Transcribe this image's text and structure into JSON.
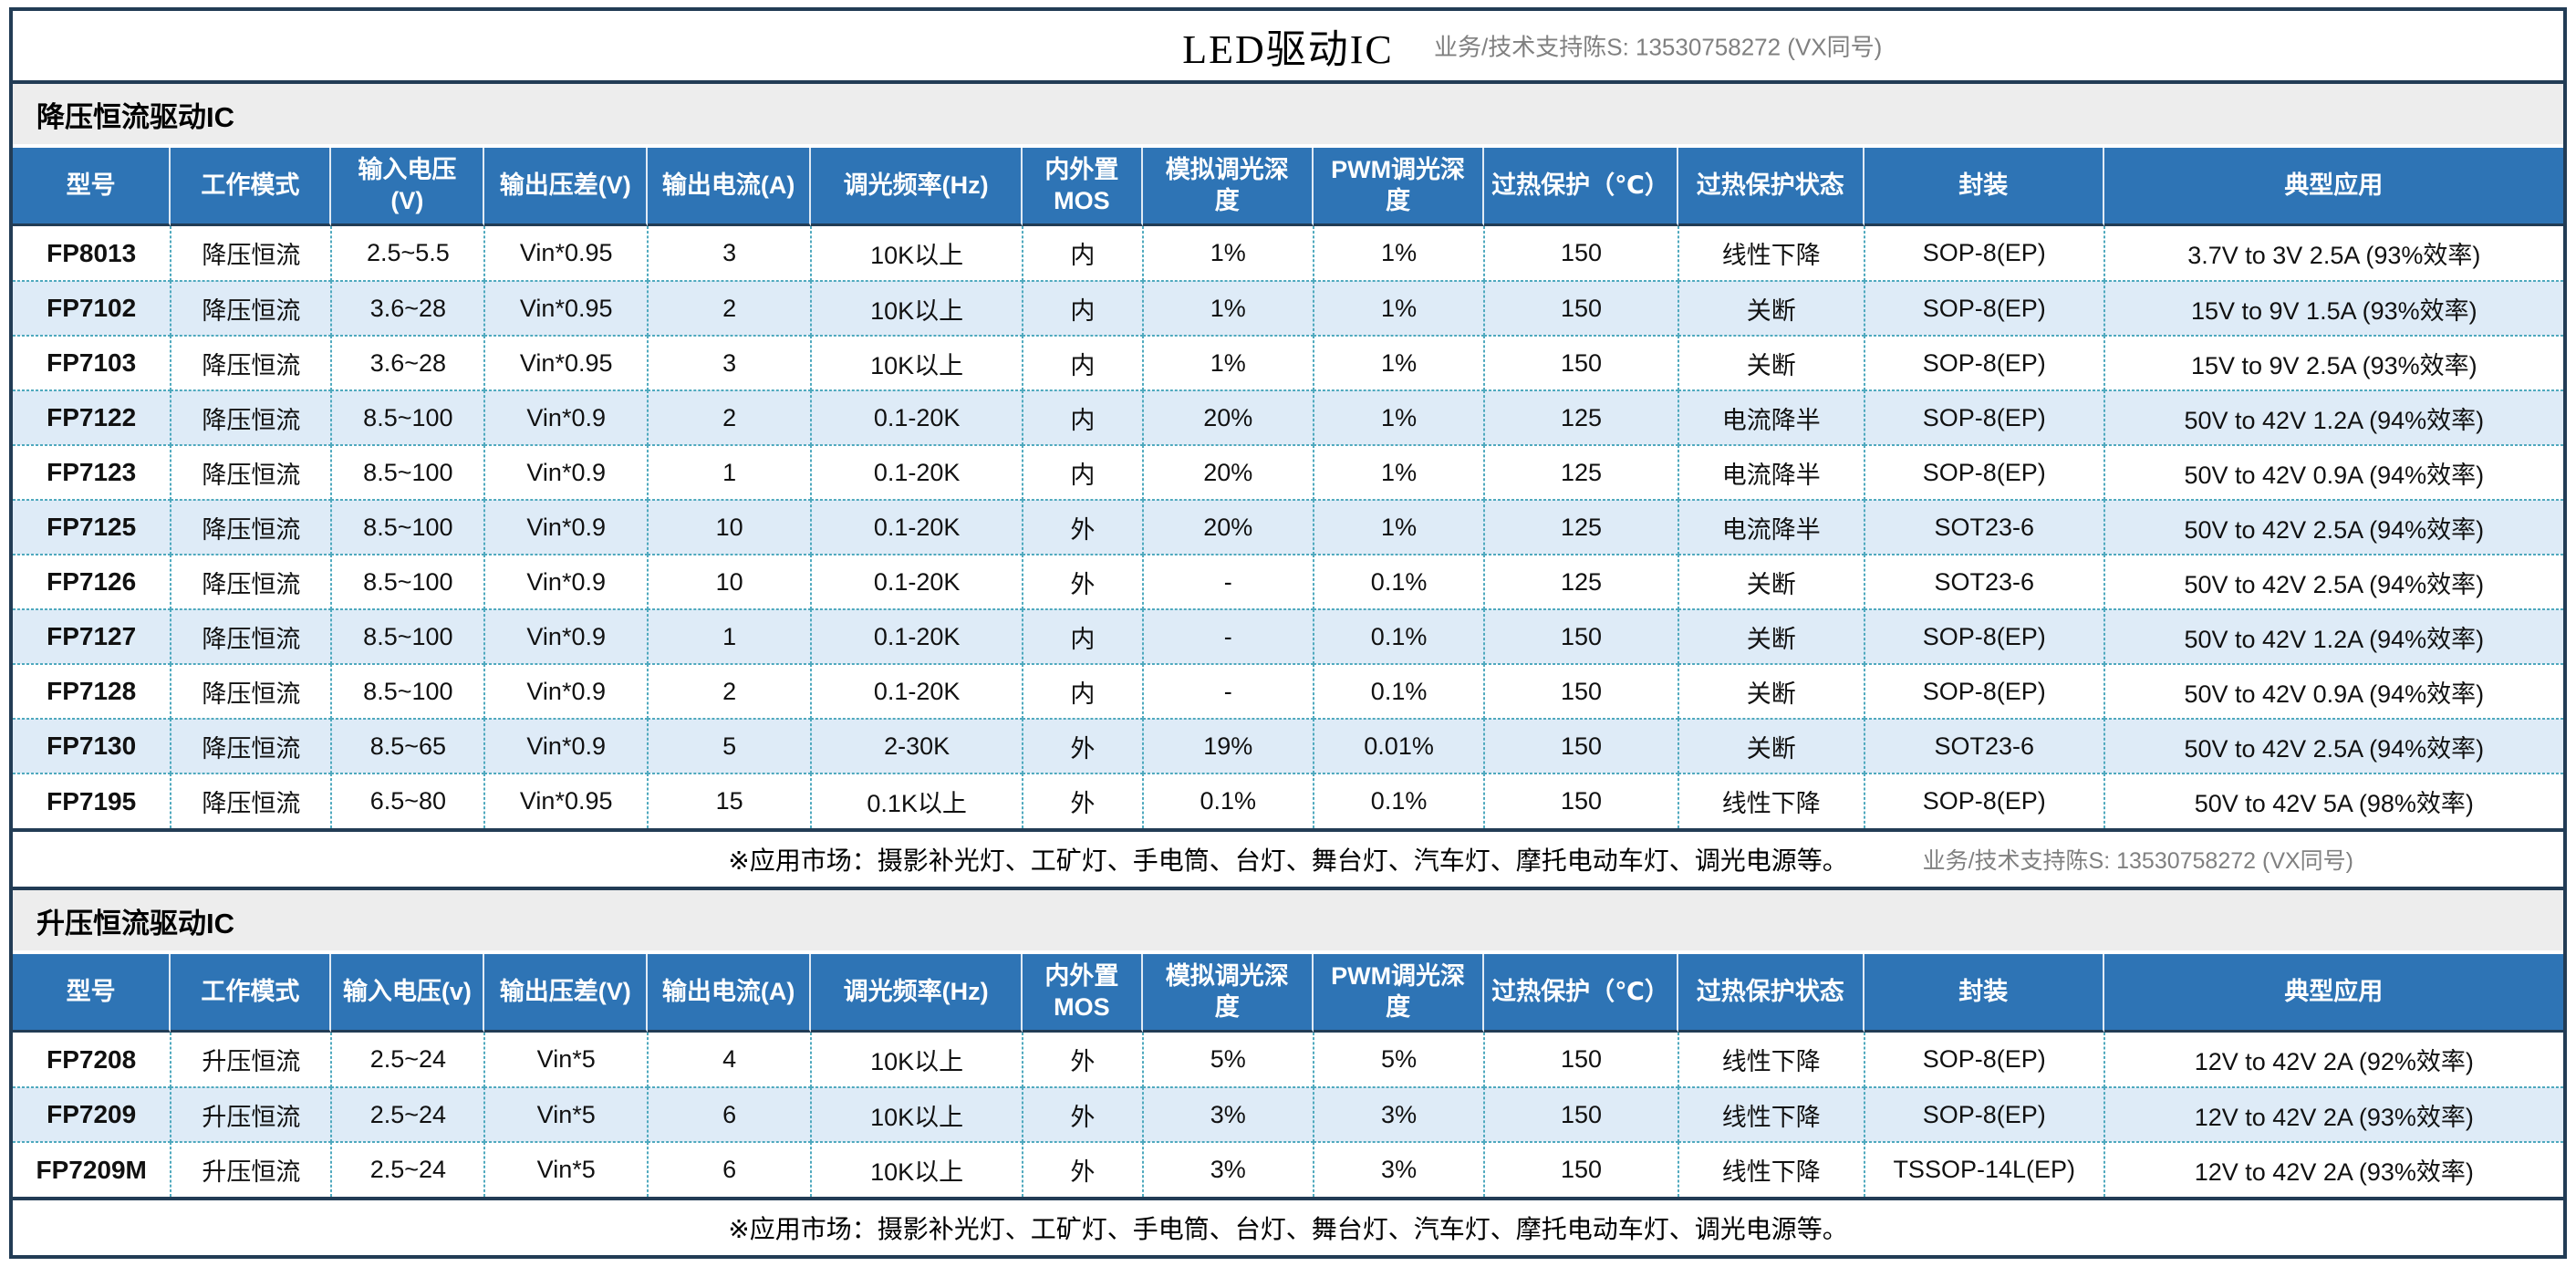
{
  "header": {
    "title": "LED驱动IC",
    "contact": "业务/技术支持陈S: 13530758272 (VX同号)"
  },
  "colors": {
    "header_blue": "#2E74B5",
    "alt_row_blue": "#DEEBF7",
    "grid_dash_teal": "#4FA9BE",
    "frame_dark_navy": "#223C55",
    "section_band_gray": "#EDEDED",
    "contact_gray": "#808080"
  },
  "sections": [
    {
      "title": "降压恒流驱动IC",
      "columns": [
        "型号",
        "工作模式",
        "输入电压\n(V)",
        "输出压差(V)",
        "输出电流(A)",
        "调光频率(Hz)",
        "内外置\nMOS",
        "模拟调光深\n度",
        "PWM调光深\n度",
        "过热保护（℃）",
        "过热保护状态",
        "封装",
        "典型应用"
      ],
      "rows": [
        [
          "FP8013",
          "降压恒流",
          "2.5~5.5",
          "Vin*0.95",
          "3",
          "10K以上",
          "内",
          "1%",
          "1%",
          "150",
          "线性下降",
          "SOP-8(EP)",
          "3.7V to 3V 2.5A (93%效率)"
        ],
        [
          "FP7102",
          "降压恒流",
          "3.6~28",
          "Vin*0.95",
          "2",
          "10K以上",
          "内",
          "1%",
          "1%",
          "150",
          "关断",
          "SOP-8(EP)",
          "15V to 9V 1.5A (93%效率)"
        ],
        [
          "FP7103",
          "降压恒流",
          "3.6~28",
          "Vin*0.95",
          "3",
          "10K以上",
          "内",
          "1%",
          "1%",
          "150",
          "关断",
          "SOP-8(EP)",
          "15V to 9V 2.5A (93%效率)"
        ],
        [
          "FP7122",
          "降压恒流",
          "8.5~100",
          "Vin*0.9",
          "2",
          "0.1-20K",
          "内",
          "20%",
          "1%",
          "125",
          "电流降半",
          "SOP-8(EP)",
          "50V to 42V 1.2A (94%效率)"
        ],
        [
          "FP7123",
          "降压恒流",
          "8.5~100",
          "Vin*0.9",
          "1",
          "0.1-20K",
          "内",
          "20%",
          "1%",
          "125",
          "电流降半",
          "SOP-8(EP)",
          "50V to 42V 0.9A (94%效率)"
        ],
        [
          "FP7125",
          "降压恒流",
          "8.5~100",
          "Vin*0.9",
          "10",
          "0.1-20K",
          "外",
          "20%",
          "1%",
          "125",
          "电流降半",
          "SOT23-6",
          "50V to 42V 2.5A (94%效率)"
        ],
        [
          "FP7126",
          "降压恒流",
          "8.5~100",
          "Vin*0.9",
          "10",
          "0.1-20K",
          "外",
          "-",
          "0.1%",
          "125",
          "关断",
          "SOT23-6",
          "50V to 42V 2.5A (94%效率)"
        ],
        [
          "FP7127",
          "降压恒流",
          "8.5~100",
          "Vin*0.9",
          "1",
          "0.1-20K",
          "内",
          "-",
          "0.1%",
          "150",
          "关断",
          "SOP-8(EP)",
          "50V to 42V 1.2A (94%效率)"
        ],
        [
          "FP7128",
          "降压恒流",
          "8.5~100",
          "Vin*0.9",
          "2",
          "0.1-20K",
          "内",
          "-",
          "0.1%",
          "150",
          "关断",
          "SOP-8(EP)",
          "50V to 42V 0.9A (94%效率)"
        ],
        [
          "FP7130",
          "降压恒流",
          "8.5~65",
          "Vin*0.9",
          "5",
          "2-30K",
          "外",
          "19%",
          "0.01%",
          "150",
          "关断",
          "SOT23-6",
          "50V to 42V 2.5A (94%效率)"
        ],
        [
          "FP7195",
          "降压恒流",
          "6.5~80",
          "Vin*0.95",
          "15",
          "0.1K以上",
          "外",
          "0.1%",
          "0.1%",
          "150",
          "线性下降",
          "SOP-8(EP)",
          "50V to 42V 5A (98%效率)"
        ]
      ],
      "note": "※应用市场：摄影补光灯、工矿灯、手电筒、台灯、舞台灯、汽车灯、摩托电动车灯、调光电源等。",
      "note_contact": "业务/技术支持陈S: 13530758272 (VX同号)"
    },
    {
      "title": "升压恒流驱动IC",
      "columns": [
        "型号",
        "工作模式",
        "输入电压(v)",
        "输出压差(V)",
        "输出电流(A)",
        "调光频率(Hz)",
        "内外置\nMOS",
        "模拟调光深\n度",
        "PWM调光深\n度",
        "过热保护（℃）",
        "过热保护状态",
        "封装",
        "典型应用"
      ],
      "rows": [
        [
          "FP7208",
          "升压恒流",
          "2.5~24",
          "Vin*5",
          "4",
          "10K以上",
          "外",
          "5%",
          "5%",
          "150",
          "线性下降",
          "SOP-8(EP)",
          "12V to 42V 2A (92%效率)"
        ],
        [
          "FP7209",
          "升压恒流",
          "2.5~24",
          "Vin*5",
          "6",
          "10K以上",
          "外",
          "3%",
          "3%",
          "150",
          "线性下降",
          "SOP-8(EP)",
          "12V to 42V 2A (93%效率)"
        ],
        [
          "FP7209M",
          "升压恒流",
          "2.5~24",
          "Vin*5",
          "6",
          "10K以上",
          "外",
          "3%",
          "3%",
          "150",
          "线性下降",
          "TSSOP-14L(EP)",
          "12V to 42V 2A (93%效率)"
        ]
      ],
      "note": "※应用市场：摄影补光灯、工矿灯、手电筒、台灯、舞台灯、汽车灯、摩托电动车灯、调光电源等。",
      "note_contact": ""
    }
  ]
}
